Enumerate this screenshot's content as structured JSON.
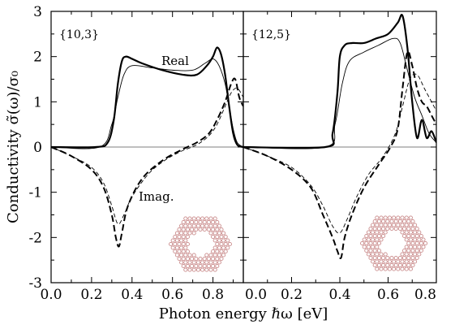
{
  "chart_data": {
    "type": "line",
    "ylabel": "Conductivity σ̃(ω)/σ₀",
    "xlabel": "Photon energy ℏω  [eV]",
    "ylim": [
      -3,
      3
    ],
    "yticks": [
      "3",
      "2",
      "1",
      "0",
      "-1",
      "-2",
      "-3"
    ],
    "grid": false,
    "zero_line": true,
    "panels": [
      {
        "tag": "{10,3}",
        "xlim": [
          0,
          0.95
        ],
        "xticks": [
          "0.0",
          "0.2",
          "0.4",
          "0.6",
          "0.8"
        ],
        "annotations": [
          "Real",
          "Imag."
        ],
        "inset": "hexagonal-nanoflake-with-hole",
        "series": [
          {
            "style": "thick-solid",
            "x": [
              0,
              0.22,
              0.28,
              0.31,
              0.33,
              0.35,
              0.37,
              0.4,
              0.45,
              0.55,
              0.65,
              0.72,
              0.77,
              0.8,
              0.82,
              0.84,
              0.86,
              0.88,
              0.9,
              0.92,
              0.95
            ],
            "y": [
              0,
              0,
              0.1,
              0.6,
              1.4,
              1.9,
              2.0,
              1.95,
              1.85,
              1.7,
              1.6,
              1.6,
              1.8,
              2.0,
              2.2,
              2.05,
              1.6,
              0.9,
              0.3,
              0.05,
              0
            ]
          },
          {
            "style": "thin-solid",
            "x": [
              0,
              0.24,
              0.3,
              0.33,
              0.36,
              0.4,
              0.5,
              0.6,
              0.7,
              0.76,
              0.8,
              0.83,
              0.86,
              0.88,
              0.9,
              0.92,
              0.95
            ],
            "y": [
              0,
              0,
              0.5,
              1.1,
              1.6,
              1.8,
              1.75,
              1.7,
              1.7,
              1.85,
              1.95,
              1.8,
              1.4,
              0.9,
              0.4,
              0.1,
              0
            ]
          },
          {
            "style": "thick-dashed",
            "x": [
              0,
              0.1,
              0.2,
              0.26,
              0.3,
              0.32,
              0.335,
              0.35,
              0.38,
              0.45,
              0.55,
              0.65,
              0.72,
              0.78,
              0.82,
              0.86,
              0.89,
              0.91,
              0.93,
              0.95
            ],
            "y": [
              0,
              -0.2,
              -0.5,
              -0.9,
              -1.5,
              -2.0,
              -2.2,
              -1.9,
              -1.3,
              -0.7,
              -0.3,
              -0.05,
              0.1,
              0.3,
              0.6,
              1.0,
              1.4,
              1.5,
              1.1,
              0.9
            ]
          },
          {
            "style": "thin-dashed",
            "x": [
              0,
              0.1,
              0.2,
              0.26,
              0.3,
              0.33,
              0.36,
              0.4,
              0.48,
              0.56,
              0.64,
              0.72,
              0.78,
              0.82,
              0.86,
              0.89,
              0.92,
              0.95
            ],
            "y": [
              0,
              -0.2,
              -0.45,
              -0.8,
              -1.3,
              -1.7,
              -1.5,
              -1.1,
              -0.6,
              -0.3,
              -0.1,
              0.05,
              0.25,
              0.5,
              0.9,
              1.2,
              1.3,
              1.1
            ]
          }
        ]
      },
      {
        "tag": "{12,5}",
        "xlim": [
          0,
          0.8
        ],
        "xticks": [
          "0.0",
          "0.2",
          "0.4",
          "0.6",
          "0.8"
        ],
        "annotations": [],
        "inset": "hexagonal-nanoflake-with-hole",
        "series": [
          {
            "style": "thick-solid",
            "x": [
              0,
              0.34,
              0.37,
              0.39,
              0.4,
              0.42,
              0.45,
              0.5,
              0.55,
              0.6,
              0.64,
              0.66,
              0.68,
              0.7,
              0.72,
              0.74,
              0.76,
              0.78,
              0.8
            ],
            "y": [
              0,
              0,
              0.3,
              1.2,
              2.0,
              2.25,
              2.3,
              2.3,
              2.4,
              2.5,
              2.75,
              2.9,
              2.2,
              1.0,
              0.2,
              0.6,
              0.2,
              0.35,
              0.1
            ]
          },
          {
            "style": "thin-solid",
            "x": [
              0,
              0.34,
              0.38,
              0.41,
              0.44,
              0.5,
              0.56,
              0.62,
              0.65,
              0.68,
              0.71,
              0.74,
              0.77,
              0.8
            ],
            "y": [
              0,
              0,
              0.5,
              1.4,
              1.9,
              2.1,
              2.25,
              2.4,
              2.3,
              1.7,
              1.1,
              0.7,
              0.3,
              0.1
            ]
          },
          {
            "style": "thick-dashed",
            "x": [
              0,
              0.1,
              0.2,
              0.28,
              0.33,
              0.37,
              0.39,
              0.405,
              0.42,
              0.45,
              0.5,
              0.56,
              0.61,
              0.64,
              0.66,
              0.68,
              0.7,
              0.72,
              0.74,
              0.76,
              0.78,
              0.8
            ],
            "y": [
              0,
              -0.2,
              -0.5,
              -0.9,
              -1.5,
              -2.0,
              -2.3,
              -2.45,
              -2.0,
              -1.5,
              -0.9,
              -0.4,
              0,
              0.4,
              1.3,
              2.1,
              1.8,
              1.3,
              1.0,
              0.9,
              0.7,
              0.5
            ]
          },
          {
            "style": "thin-dashed",
            "x": [
              0,
              0.1,
              0.2,
              0.28,
              0.33,
              0.37,
              0.4,
              0.43,
              0.47,
              0.52,
              0.58,
              0.63,
              0.66,
              0.69,
              0.72,
              0.75,
              0.78,
              0.8
            ],
            "y": [
              0,
              -0.2,
              -0.45,
              -0.85,
              -1.3,
              -1.75,
              -1.9,
              -1.6,
              -1.1,
              -0.6,
              -0.2,
              0.3,
              0.9,
              1.5,
              1.6,
              1.3,
              1.0,
              0.8
            ]
          }
        ]
      }
    ]
  }
}
